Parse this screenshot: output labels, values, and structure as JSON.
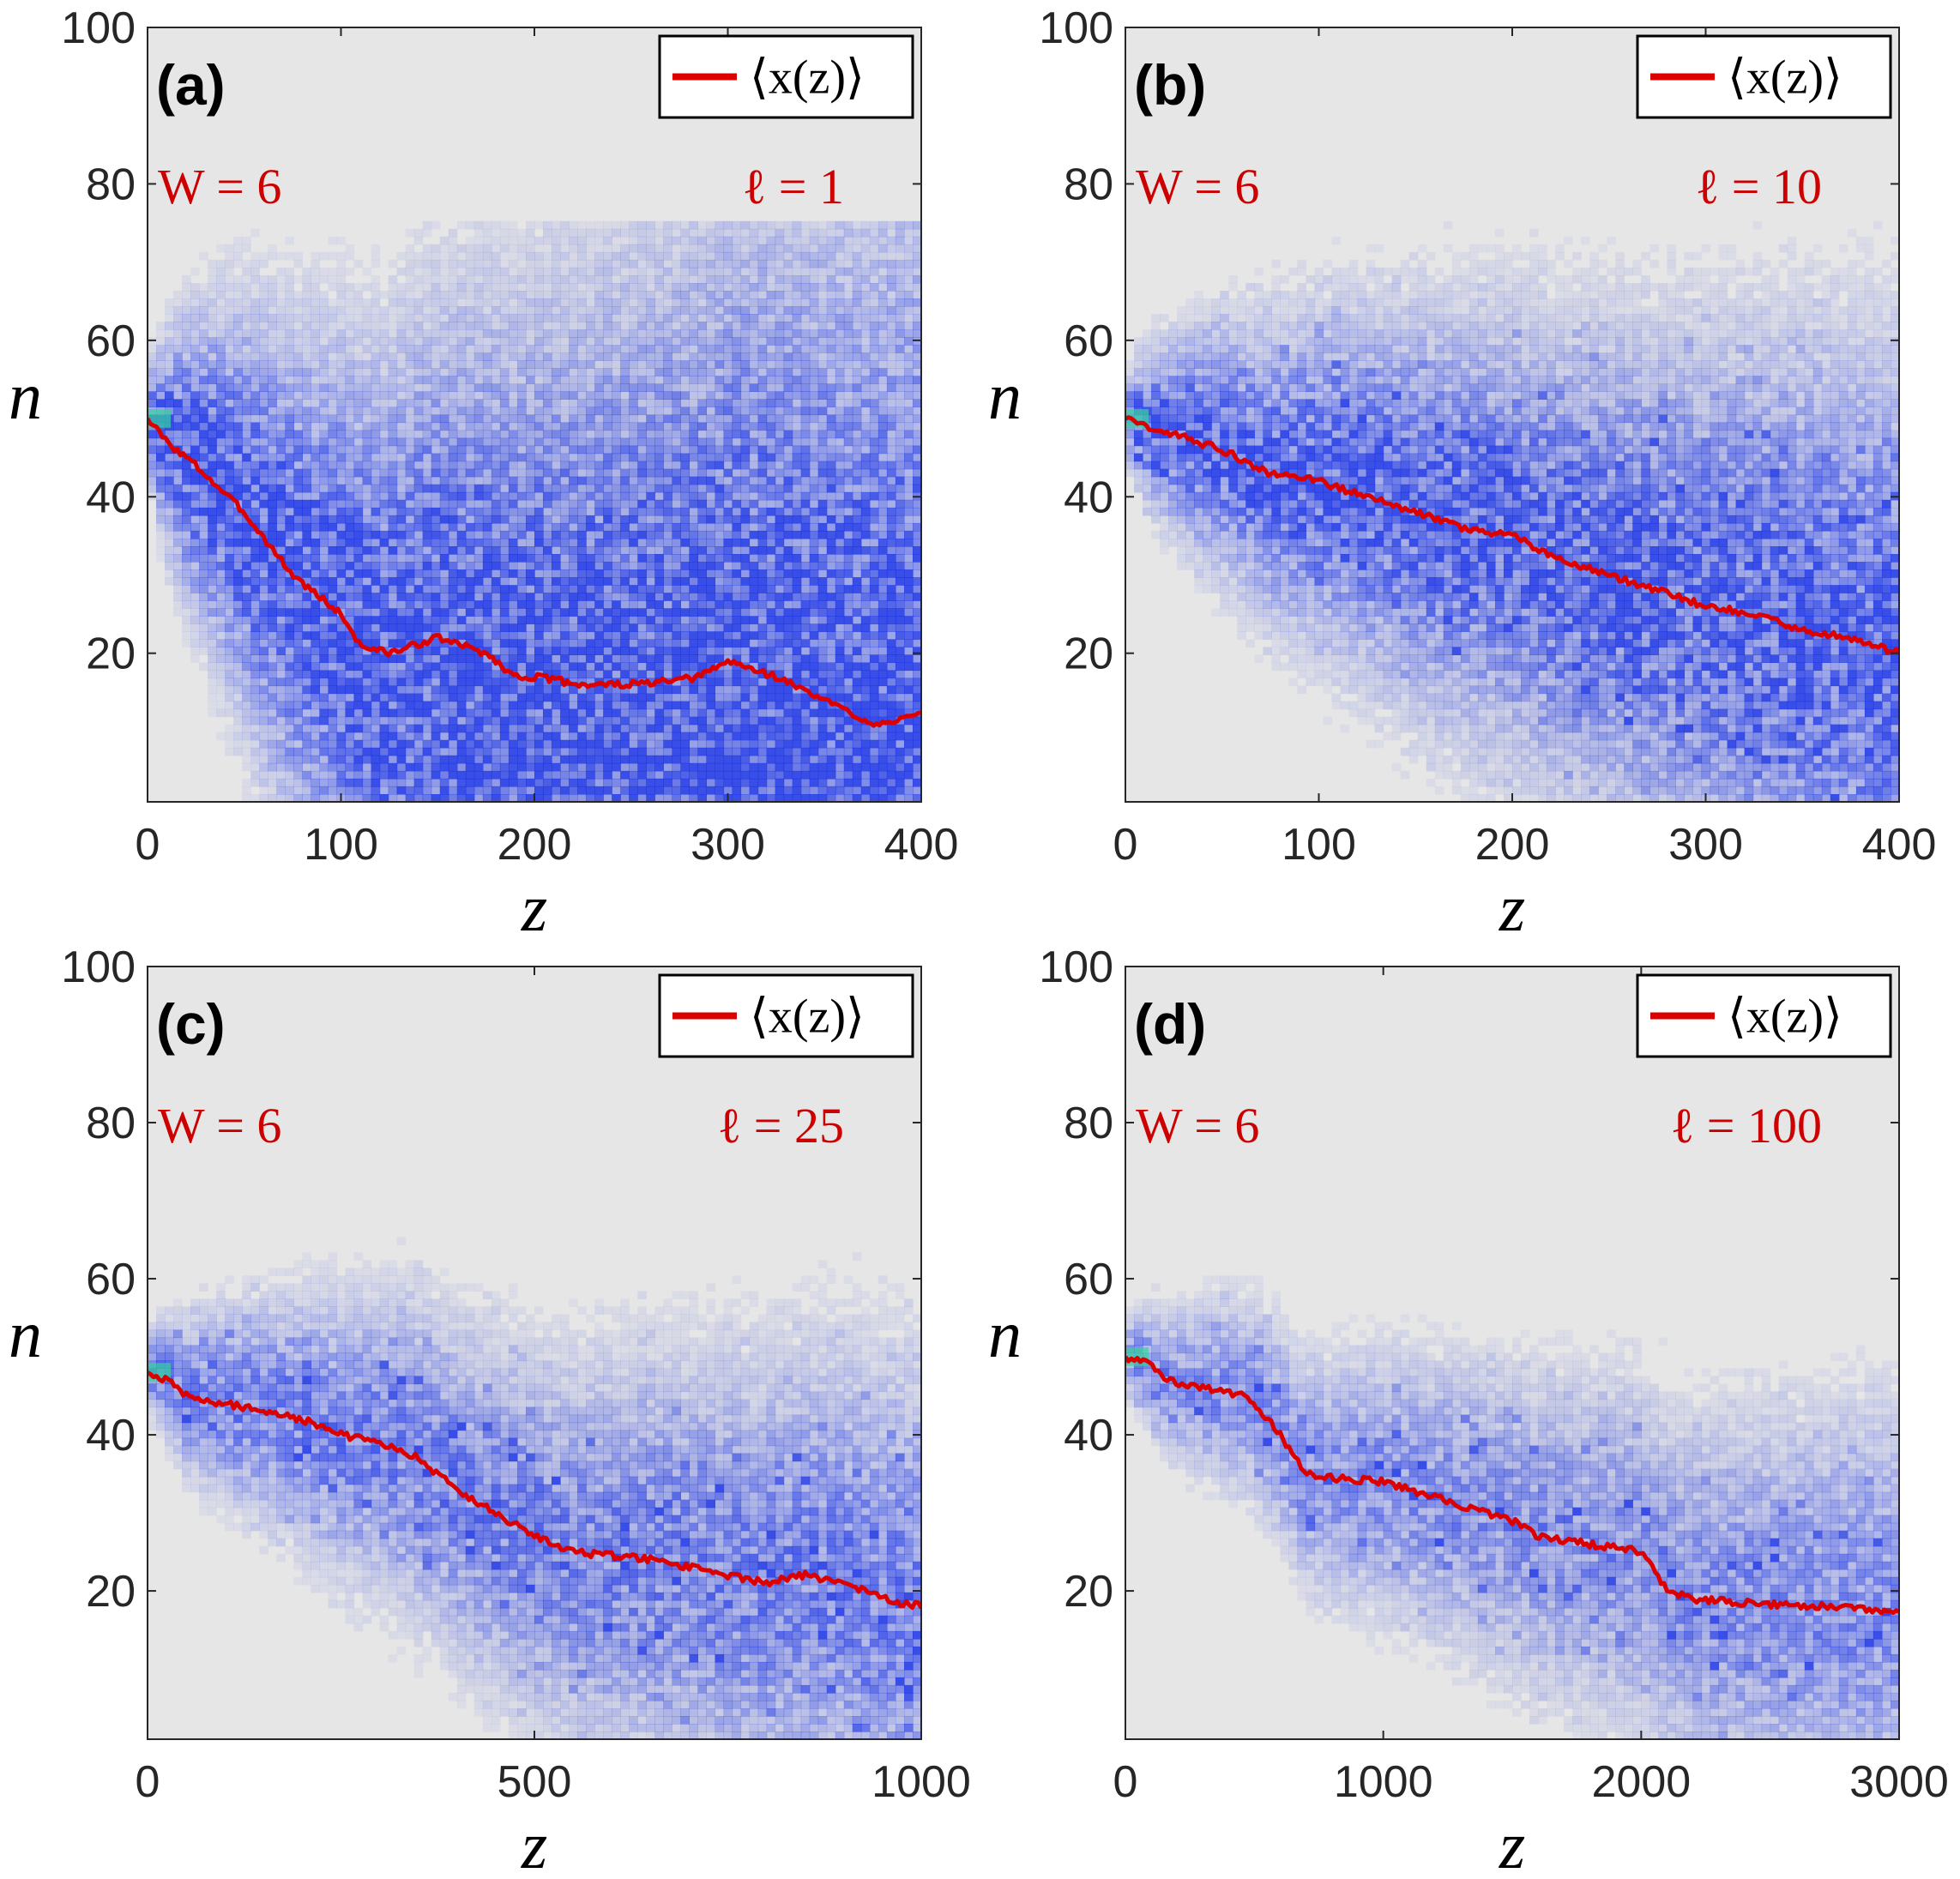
{
  "figure": {
    "background": "#ffffff",
    "plot_bg": "#e6e6e6",
    "line_color": "#dd0000",
    "blue": "#1a33e6"
  },
  "chart_data": [
    {
      "id": "a",
      "type": "line",
      "tag": "(a)",
      "xlabel": "z",
      "ylabel": "n",
      "xlim": [
        0,
        400
      ],
      "ylim": [
        1,
        100
      ],
      "xticks": [
        0,
        100,
        200,
        300,
        400
      ],
      "yticks": [
        20,
        40,
        60,
        80,
        100
      ],
      "xtick_labels": [
        "0",
        "100",
        "200",
        "300",
        "400"
      ],
      "ytick_labels": [
        "20",
        "40",
        "60",
        "80",
        "100"
      ],
      "W_label": "W = 6",
      "ell_label": "ℓ = 1",
      "legend": "⟨x(z)⟩",
      "series": [
        {
          "name": "⟨x(z)⟩",
          "x": [
            0,
            10,
            25,
            50,
            75,
            100,
            110,
            125,
            150,
            175,
            190,
            200,
            225,
            250,
            275,
            285,
            300,
            325,
            350,
            375,
            400
          ],
          "y": [
            50,
            47,
            44,
            38,
            30,
            25,
            21,
            20,
            22,
            20,
            17,
            17,
            16,
            16,
            16.5,
            17,
            19,
            17,
            14,
            11,
            12
          ]
        }
      ],
      "intensity": {
        "spread": 3.6,
        "weight": 1.0,
        "blobs": false
      }
    },
    {
      "id": "b",
      "type": "line",
      "tag": "(b)",
      "xlabel": "z",
      "ylabel": "n",
      "xlim": [
        0,
        400
      ],
      "ylim": [
        1,
        100
      ],
      "xticks": [
        0,
        100,
        200,
        300,
        400
      ],
      "yticks": [
        20,
        40,
        60,
        80,
        100
      ],
      "xtick_labels": [
        "0",
        "100",
        "200",
        "300",
        "400"
      ],
      "ytick_labels": [
        "20",
        "40",
        "60",
        "80",
        "100"
      ],
      "W_label": "W = 6",
      "ell_label": "ℓ = 10",
      "legend": "⟨x(z)⟩",
      "series": [
        {
          "name": "⟨x(z)⟩",
          "x": [
            0,
            10,
            25,
            50,
            75,
            100,
            125,
            150,
            175,
            200,
            225,
            250,
            275,
            300,
            325,
            350,
            375,
            400
          ],
          "y": [
            50,
            49,
            48,
            46,
            43,
            42,
            40,
            38,
            36,
            35,
            32,
            30,
            28,
            26,
            25,
            23,
            22,
            20
          ]
        }
      ],
      "intensity": {
        "spread": 2.0,
        "weight": 0.9,
        "blobs": true
      }
    },
    {
      "id": "c",
      "type": "line",
      "tag": "(c)",
      "xlabel": "z",
      "ylabel": "n",
      "xlim": [
        0,
        1000
      ],
      "ylim": [
        1,
        100
      ],
      "xticks": [
        0,
        500,
        1000
      ],
      "yticks": [
        20,
        40,
        60,
        80,
        100
      ],
      "xtick_labels": [
        "0",
        "500",
        "1000"
      ],
      "ytick_labels": [
        "20",
        "40",
        "60",
        "80",
        "100"
      ],
      "W_label": "W = 6",
      "ell_label": "ℓ = 25",
      "legend": "⟨x(z)⟩",
      "series": [
        {
          "name": "⟨x(z)⟩",
          "x": [
            0,
            25,
            50,
            100,
            150,
            200,
            250,
            300,
            350,
            400,
            450,
            500,
            550,
            600,
            650,
            700,
            750,
            800,
            850,
            900,
            950,
            1000
          ],
          "y": [
            48,
            47,
            45,
            44,
            43,
            42,
            40,
            39,
            37,
            33,
            30,
            27,
            25,
            24.5,
            24,
            23,
            22,
            21,
            22,
            21,
            19,
            18
          ]
        }
      ],
      "intensity": {
        "spread": 1.6,
        "weight": 0.7,
        "blobs": true
      }
    },
    {
      "id": "d",
      "type": "line",
      "tag": "(d)",
      "xlabel": "z",
      "ylabel": "n",
      "xlim": [
        0,
        3000
      ],
      "ylim": [
        1,
        100
      ],
      "xticks": [
        0,
        1000,
        2000,
        3000
      ],
      "yticks": [
        20,
        40,
        60,
        80,
        100
      ],
      "xtick_labels": [
        "0",
        "1000",
        "2000",
        "3000"
      ],
      "ytick_labels": [
        "20",
        "40",
        "60",
        "80",
        "100"
      ],
      "W_label": "W = 6",
      "ell_label": "ℓ = 100",
      "legend": "⟨x(z)⟩",
      "series": [
        {
          "name": "⟨x(z)⟩",
          "x": [
            0,
            100,
            150,
            300,
            450,
            500,
            600,
            680,
            700,
            800,
            1000,
            1200,
            1400,
            1500,
            1600,
            1800,
            2000,
            2100,
            2200,
            2400,
            2600,
            2800,
            3000
          ],
          "y": [
            50,
            49,
            47,
            46,
            45,
            44,
            40,
            36,
            35,
            34.5,
            34,
            32,
            30,
            29,
            27,
            26,
            25,
            20,
            19,
            18.5,
            18,
            18,
            17
          ]
        }
      ],
      "intensity": {
        "spread": 1.3,
        "weight": 0.6,
        "blobs": true
      }
    }
  ]
}
